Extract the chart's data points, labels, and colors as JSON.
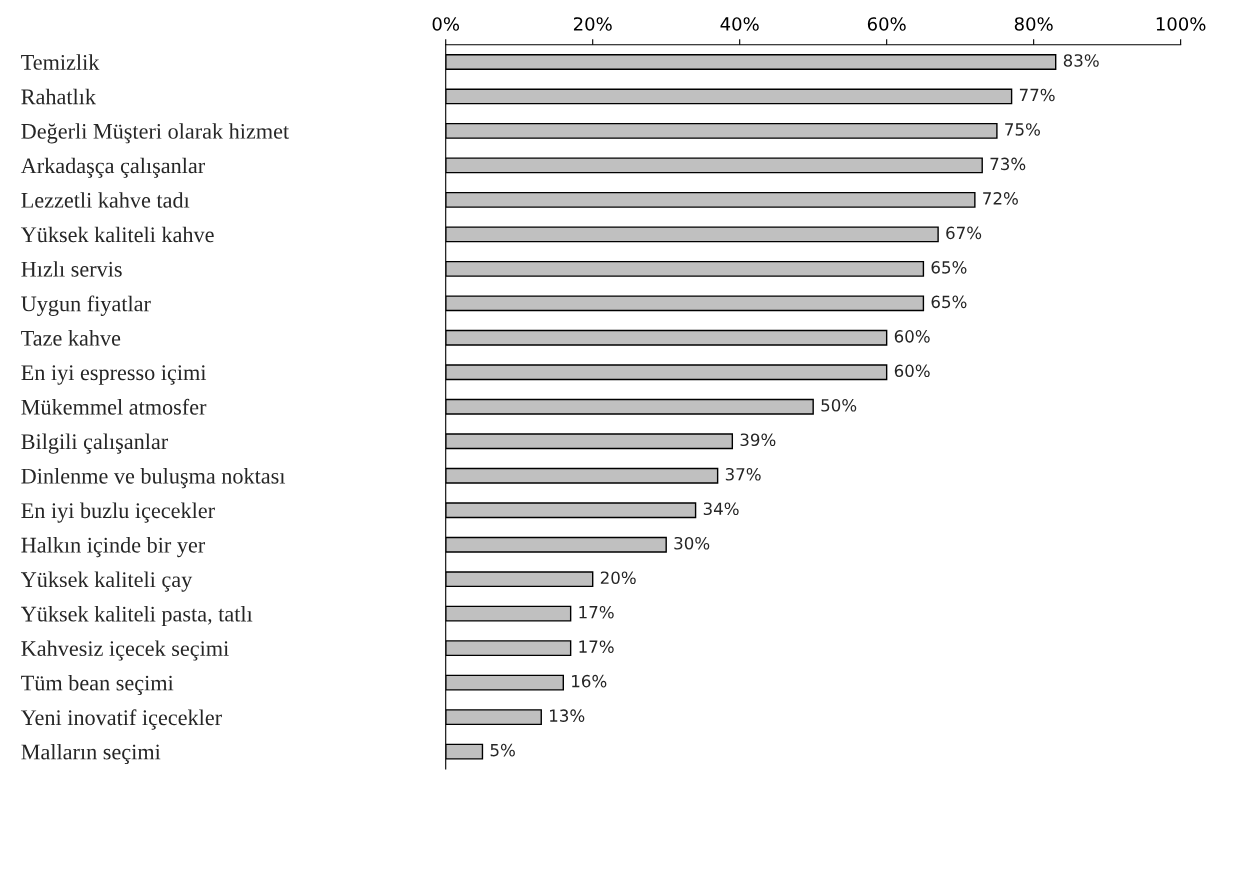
{
  "chart_data": {
    "type": "bar",
    "orientation": "horizontal",
    "categories": [
      "Temizlik",
      "Rahatlık",
      "Değerli Müşteri olarak hizmet",
      "Arkadaşça çalışanlar",
      "Lezzetli kahve tadı",
      "Yüksek kaliteli kahve",
      "Hızlı servis",
      "Uygun fiyatlar",
      "Taze kahve",
      "En iyi espresso içimi",
      "Mükemmel atmosfer",
      "Bilgili çalışanlar",
      "Dinlenme ve buluşma noktası",
      "En iyi buzlu içecekler",
      "Halkın içinde bir yer",
      "Yüksek kaliteli çay",
      "Yüksek kaliteli pasta, tatlı",
      "Kahvesiz içecek seçimi",
      "Tüm bean seçimi",
      "Yeni inovatif içecekler",
      "Malların seçimi"
    ],
    "values": [
      83,
      77,
      75,
      73,
      72,
      67,
      65,
      65,
      60,
      60,
      50,
      39,
      37,
      34,
      30,
      20,
      17,
      17,
      16,
      13,
      5
    ],
    "value_labels": [
      "83%",
      "77%",
      "75%",
      "73%",
      "72%",
      "67%",
      "65%",
      "65%",
      "60%",
      "60%",
      "50%",
      "39%",
      "37%",
      "34%",
      "30%",
      "20%",
      "17%",
      "17%",
      "16%",
      "13%",
      "5%"
    ],
    "color": "#c0c0c0",
    "xlim": [
      0,
      100
    ],
    "xticks": [
      {
        "value": 0,
        "label": "0%"
      },
      {
        "value": 20,
        "label": "20%"
      },
      {
        "value": 40,
        "label": "40%"
      },
      {
        "value": 60,
        "label": "60%"
      },
      {
        "value": 80,
        "label": "80%"
      },
      {
        "value": 100,
        "label": "100%"
      }
    ],
    "grid": false,
    "legend": false
  }
}
